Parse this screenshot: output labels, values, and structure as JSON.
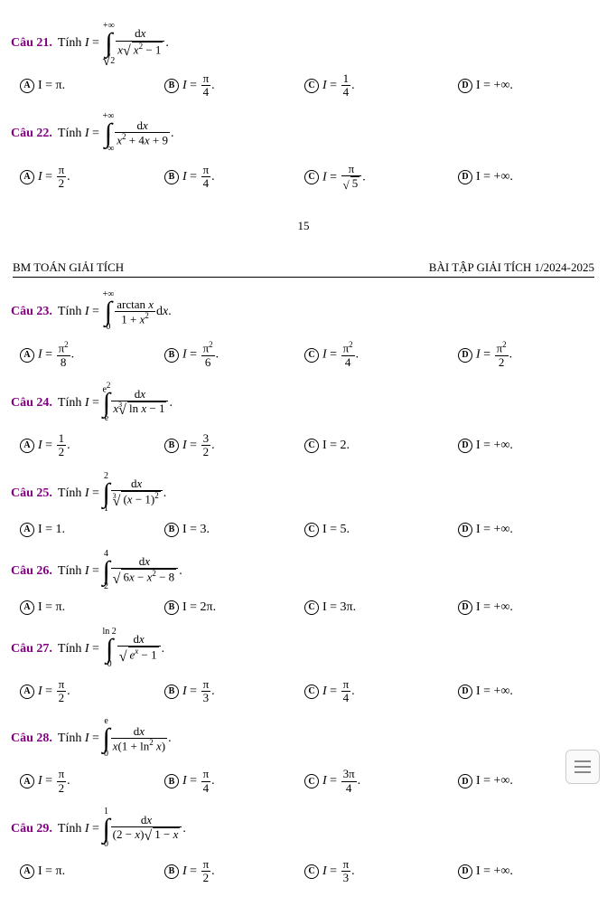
{
  "page_number": "15",
  "header_left": "BM TOÁN GIẢI TÍCH",
  "header_right": "BÀI TẬP GIẢI TÍCH 1/2024-2025",
  "tinh_prefix": "Tính ",
  "I_eq": "I = ",
  "questions": {
    "q21": {
      "num": "Câu 21.",
      "upper": "+∞",
      "lower_tex": "√2",
      "integrand_num": "d",
      "integrand_num2": "x",
      "A": "I = π.",
      "B_val": "π",
      "B_den": "4",
      "C_val": "1",
      "C_den": "4",
      "D": "I = +∞."
    },
    "q22": {
      "num": "Câu 22.",
      "upper": "+∞",
      "lower": "−∞",
      "A_val": "π",
      "A_den": "2",
      "B_val": "π",
      "B_den": "4",
      "C_val": "π",
      "C_den": "√5",
      "D": "I = +∞."
    },
    "q23": {
      "num": "Câu 23.",
      "upper": "+∞",
      "lower": "0",
      "A_val": "π",
      "A_den": "8",
      "B_val": "π",
      "B_den": "6",
      "C_val": "π",
      "C_den": "4",
      "D_val": "π",
      "D_den": "2"
    },
    "q24": {
      "num": "Câu 24.",
      "upper": "e",
      "lower": "e",
      "A_val": "1",
      "A_den": "2",
      "B_val": "3",
      "B_den": "2",
      "C": "I = 2.",
      "D": "I = +∞."
    },
    "q25": {
      "num": "Câu 25.",
      "upper": "2",
      "lower": "1",
      "A": "I = 1.",
      "B": "I = 3.",
      "C": "I = 5.",
      "D": "I = +∞."
    },
    "q26": {
      "num": "Câu 26.",
      "upper": "4",
      "lower": "2",
      "A": "I = π.",
      "B": "I = 2π.",
      "C": "I = 3π.",
      "D": "I = +∞."
    },
    "q27": {
      "num": "Câu 27.",
      "upper": "ln 2",
      "lower": "0",
      "A_val": "π",
      "A_den": "2",
      "B_val": "π",
      "B_den": "3",
      "C_val": "π",
      "C_den": "4",
      "D": "I = +∞."
    },
    "q28": {
      "num": "Câu 28.",
      "upper": "e",
      "lower": "0",
      "A_val": "π",
      "A_den": "2",
      "B_val": "π",
      "B_den": "4",
      "C_val": "3π",
      "C_den": "4",
      "D": "I = +∞."
    },
    "q29": {
      "num": "Câu 29.",
      "upper": "1",
      "lower": "0",
      "A": "I = π.",
      "B_val": "π",
      "B_den": "2",
      "C_val": "π",
      "C_den": "3",
      "D": "I = +∞."
    }
  }
}
